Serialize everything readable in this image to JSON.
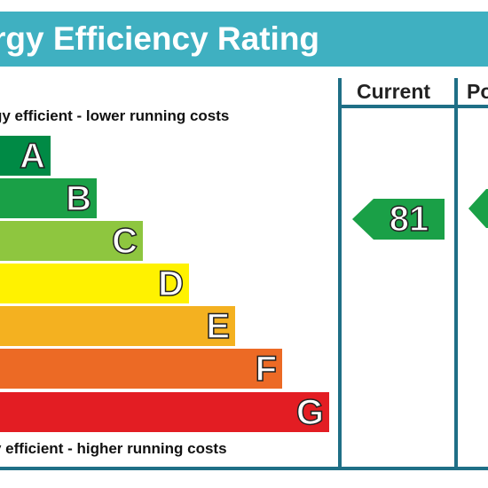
{
  "header": {
    "title": "rgy Efficiency Rating"
  },
  "columns": {
    "current": "Current",
    "potential": "Po"
  },
  "captions": {
    "top": "gy efficient - lower running costs",
    "bottom": "y efficient - higher running costs"
  },
  "bands": [
    {
      "letter": "A",
      "range": ")",
      "color": "#008a45"
    },
    {
      "letter": "B",
      "color": "#1aa047"
    },
    {
      "letter": "C",
      "color": "#8ec63f"
    },
    {
      "letter": "D",
      "color": "#fff200"
    },
    {
      "letter": "E",
      "color": "#f4b120"
    },
    {
      "letter": "F",
      "color": "#ec6a25"
    },
    {
      "letter": "G",
      "color": "#e31d23"
    }
  ],
  "current_rating": {
    "value": "81",
    "color": "#1aa047"
  },
  "potential_rating": {
    "value": "",
    "color": "#1aa047"
  }
}
